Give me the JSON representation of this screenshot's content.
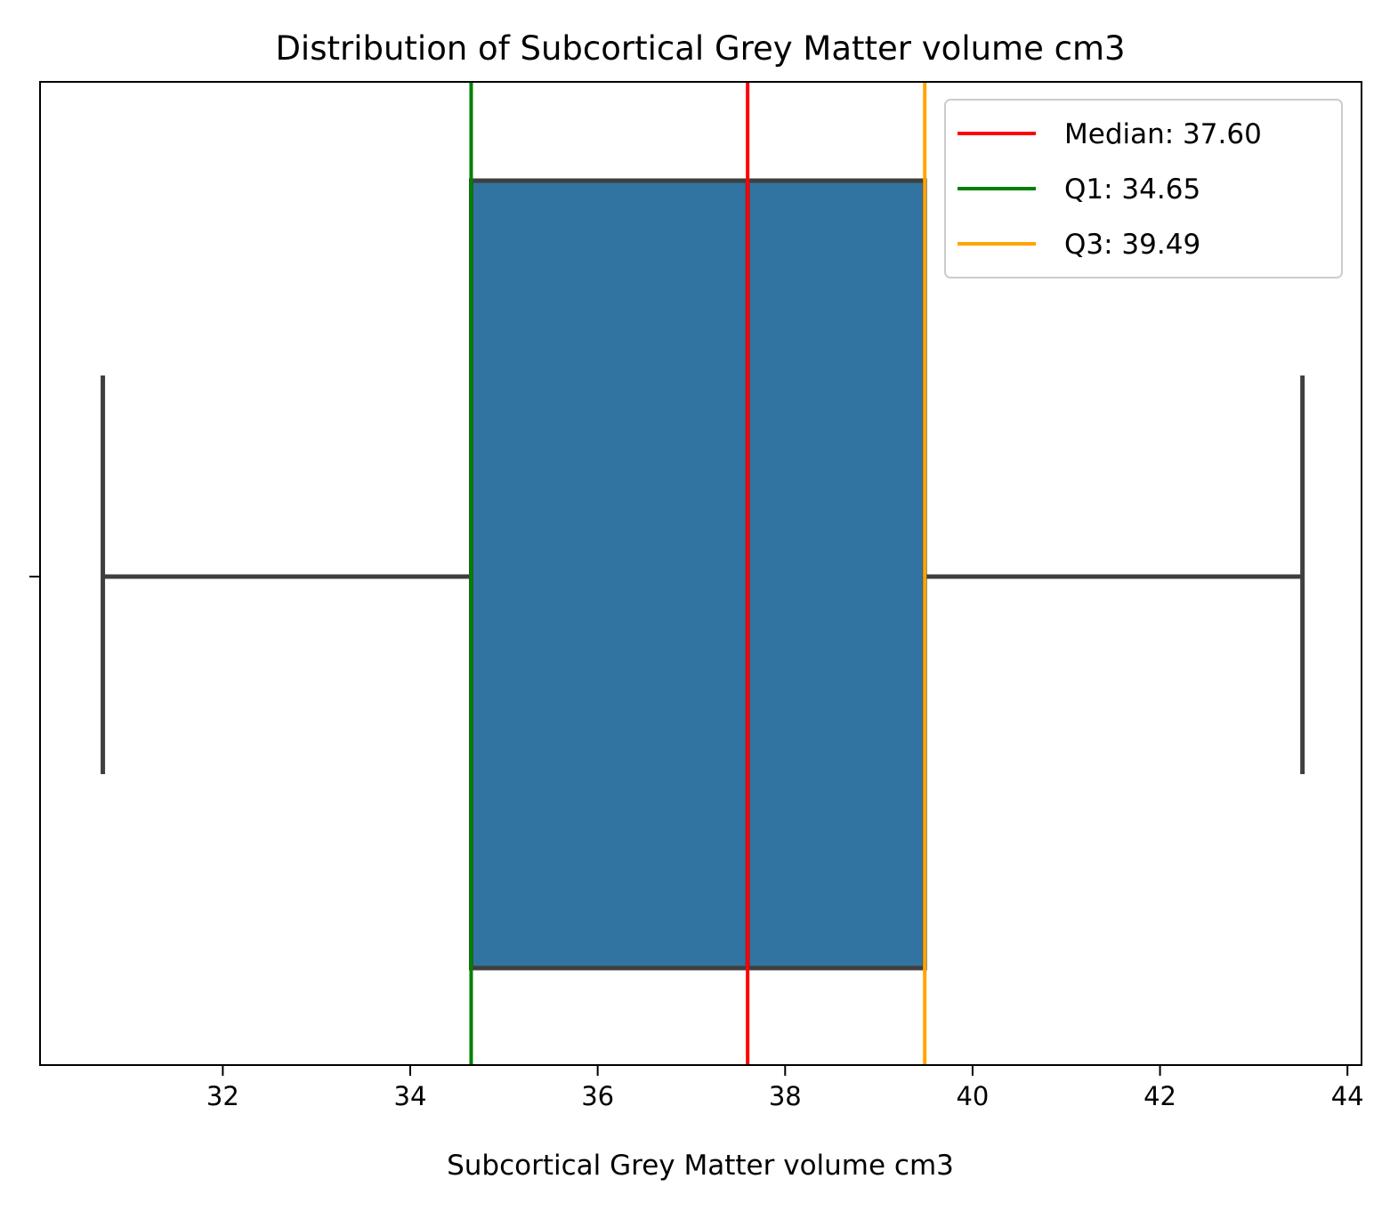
{
  "chart_data": {
    "type": "box",
    "title": "Distribution of Subcortical Grey Matter volume cm3",
    "xlabel": "Subcortical Grey Matter volume cm3",
    "ylabel": "",
    "xlim": [
      30.05,
      44.15
    ],
    "xticks": [
      32,
      34,
      36,
      38,
      40,
      42,
      44
    ],
    "box": {
      "min": 30.72,
      "q1": 34.65,
      "median": 37.6,
      "q3": 39.49,
      "max": 43.52,
      "color": "#3274a1",
      "edge_color": "#3f3f3f"
    },
    "reference_lines": [
      {
        "name": "median",
        "value": 37.6,
        "label": "Median: 37.60",
        "color": "#ff0000"
      },
      {
        "name": "q1",
        "value": 34.65,
        "label": "Q1: 34.65",
        "color": "#008000"
      },
      {
        "name": "q3",
        "value": 39.49,
        "label": "Q3: 39.49",
        "color": "#ffa500"
      }
    ],
    "legend": {
      "position": "top-right"
    },
    "grid": false
  }
}
